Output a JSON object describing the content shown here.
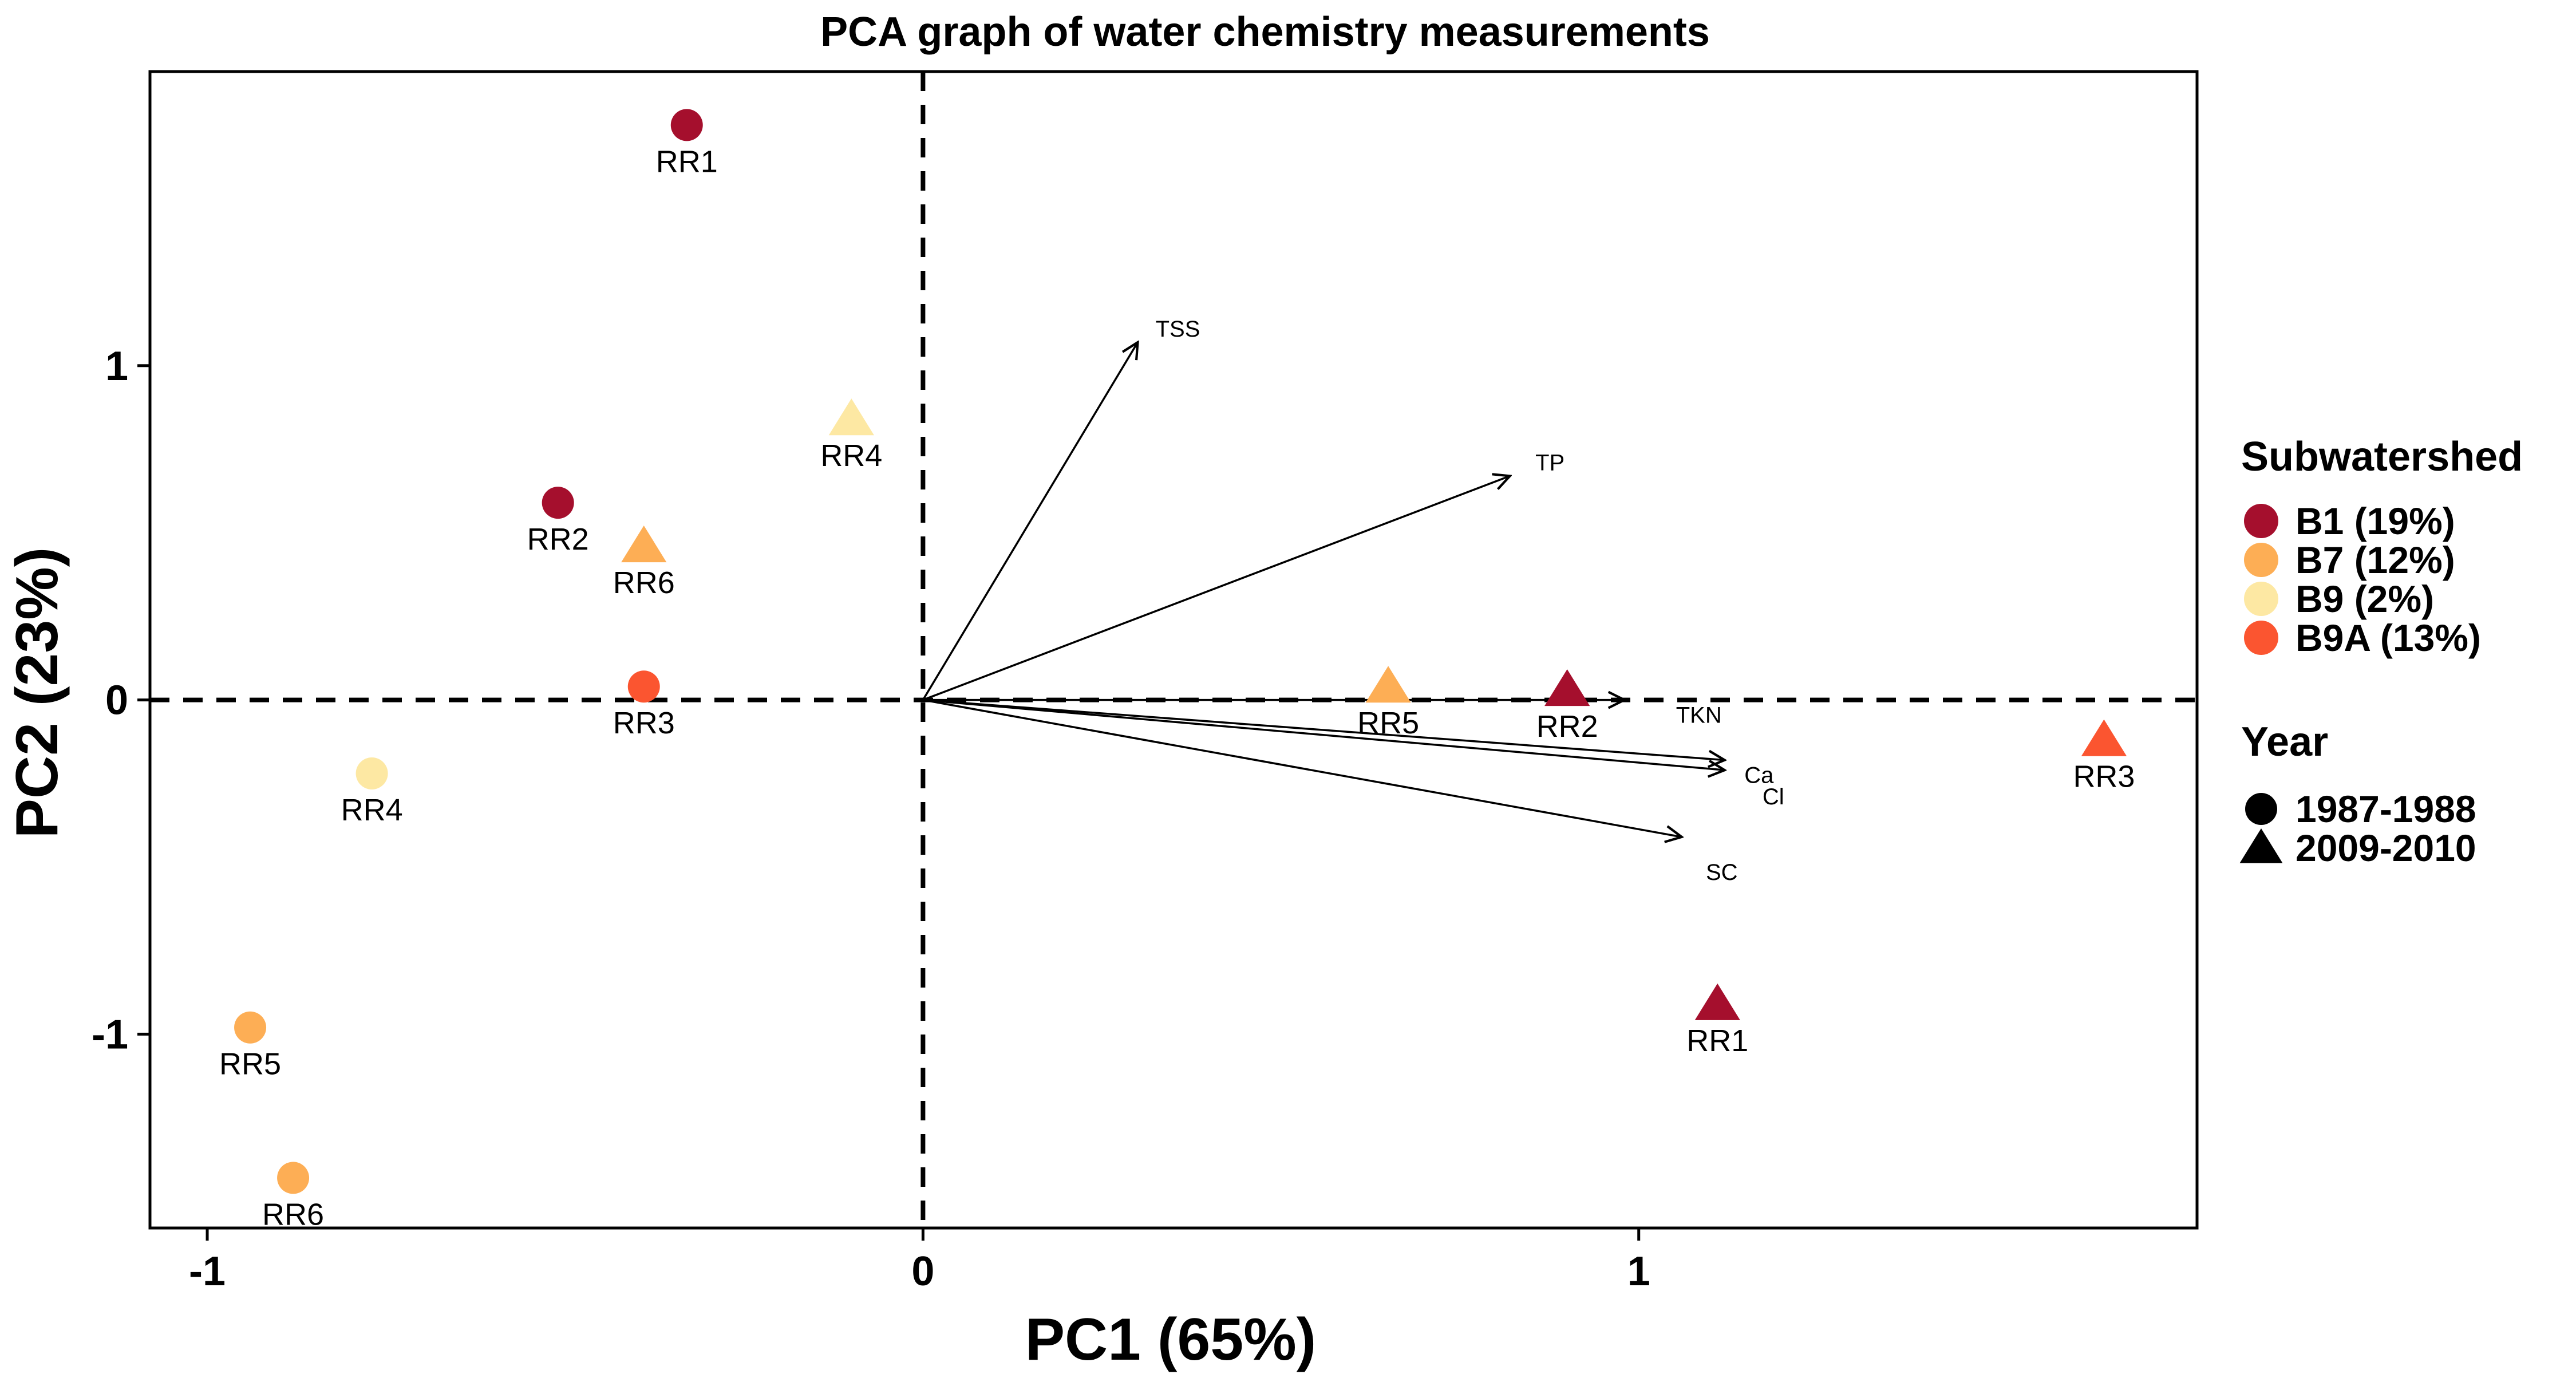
{
  "chart_data": {
    "type": "scatter",
    "title": "PCA graph of water chemistry measurements",
    "xlabel": "PC1 (65%)",
    "ylabel": "PC2 (23%)",
    "xlim": [
      -1.08,
      1.78
    ],
    "ylim": [
      -1.58,
      1.88
    ],
    "xticks": [
      {
        "v": -1,
        "label": "-1"
      },
      {
        "v": 0,
        "label": "0"
      },
      {
        "v": 1,
        "label": "1"
      }
    ],
    "yticks": [
      {
        "v": -1,
        "label": "-1"
      },
      {
        "v": 0,
        "label": "0"
      },
      {
        "v": 1,
        "label": "1"
      }
    ],
    "reference_lines": {
      "x": 0,
      "y": 0,
      "style": "dashed"
    },
    "grid": false,
    "legend_placement": "right",
    "groups": [
      {
        "key": "B1",
        "label": "B1 (19%)",
        "color": "#a50f2d"
      },
      {
        "key": "B7",
        "label": "B7 (12%)",
        "color": "#fdae55"
      },
      {
        "key": "B9",
        "label": "B9 (2%)",
        "color": "#fde8a3"
      },
      {
        "key": "B9A",
        "label": "B9A (13%)",
        "color": "#fb5530"
      }
    ],
    "years": [
      {
        "key": "1987-1988",
        "label": "1987-1988",
        "shape": "circle"
      },
      {
        "key": "2009-2010",
        "label": "2009-2010",
        "shape": "triangle"
      }
    ],
    "legend": {
      "group_title": "Subwatershed",
      "year_title": "Year"
    },
    "points": [
      {
        "label": "RR1",
        "group": "B1",
        "year": "1987-1988",
        "x": -0.33,
        "y": 1.72
      },
      {
        "label": "RR2",
        "group": "B1",
        "year": "1987-1988",
        "x": -0.51,
        "y": 0.59
      },
      {
        "label": "RR3",
        "group": "B9A",
        "year": "1987-1988",
        "x": -0.39,
        "y": 0.04
      },
      {
        "label": "RR4",
        "group": "B9",
        "year": "1987-1988",
        "x": -0.77,
        "y": -0.22
      },
      {
        "label": "RR5",
        "group": "B7",
        "year": "1987-1988",
        "x": -0.94,
        "y": -0.98
      },
      {
        "label": "RR6",
        "group": "B7",
        "year": "1987-1988",
        "x": -0.88,
        "y": -1.43
      },
      {
        "label": "RR4",
        "group": "B9",
        "year": "2009-2010",
        "x": -0.1,
        "y": 0.84
      },
      {
        "label": "RR6",
        "group": "B7",
        "year": "2009-2010",
        "x": -0.39,
        "y": 0.46
      },
      {
        "label": "RR5",
        "group": "B7",
        "year": "2009-2010",
        "x": 0.65,
        "y": 0.04
      },
      {
        "label": "RR2",
        "group": "B1",
        "year": "2009-2010",
        "x": 0.9,
        "y": 0.03
      },
      {
        "label": "RR1",
        "group": "B1",
        "year": "2009-2010",
        "x": 1.11,
        "y": -0.91
      },
      {
        "label": "RR3",
        "group": "B9A",
        "year": "2009-2010",
        "x": 1.65,
        "y": -0.12
      }
    ],
    "loadings": [
      {
        "name": "TSS",
        "x": 0.3,
        "y": 1.07
      },
      {
        "name": "TP",
        "x": 0.82,
        "y": 0.67
      },
      {
        "name": "TKN",
        "x": 0.98,
        "y": 0.0
      },
      {
        "name": "Ca",
        "x": 1.12,
        "y": -0.18
      },
      {
        "name": "Cl",
        "x": 1.12,
        "y": -0.21
      },
      {
        "name": "SC",
        "x": 1.06,
        "y": -0.41
      }
    ]
  }
}
